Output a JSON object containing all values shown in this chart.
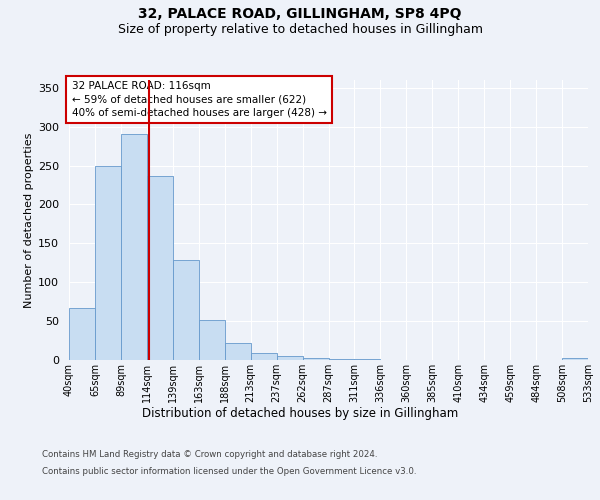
{
  "title": "32, PALACE ROAD, GILLINGHAM, SP8 4PQ",
  "subtitle": "Size of property relative to detached houses in Gillingham",
  "xlabel": "Distribution of detached houses by size in Gillingham",
  "ylabel": "Number of detached properties",
  "bar_values": [
    67,
    250,
    290,
    236,
    128,
    52,
    22,
    9,
    5,
    2,
    1,
    1,
    0,
    0,
    0,
    0,
    0,
    0,
    0,
    3
  ],
  "x_labels": [
    "40sqm",
    "65sqm",
    "89sqm",
    "114sqm",
    "139sqm",
    "163sqm",
    "188sqm",
    "213sqm",
    "237sqm",
    "262sqm",
    "287sqm",
    "311sqm",
    "336sqm",
    "360sqm",
    "385sqm",
    "410sqm",
    "434sqm",
    "459sqm",
    "484sqm",
    "508sqm",
    "533sqm"
  ],
  "bar_color": "#c8ddf2",
  "bar_edge_color": "#6699cc",
  "property_label": "32 PALACE ROAD: 116sqm",
  "annotation_line1": "← 59% of detached houses are smaller (622)",
  "annotation_line2": "40% of semi-detached houses are larger (428) →",
  "vline_color": "#cc0000",
  "ylim": [
    0,
    360
  ],
  "yticks": [
    0,
    50,
    100,
    150,
    200,
    250,
    300,
    350
  ],
  "footer_line1": "Contains HM Land Registry data © Crown copyright and database right 2024.",
  "footer_line2": "Contains public sector information licensed under the Open Government Licence v3.0.",
  "bg_color": "#eef2f9",
  "plot_bg_color": "#eef2f9",
  "title_fontsize": 10,
  "subtitle_fontsize": 9
}
